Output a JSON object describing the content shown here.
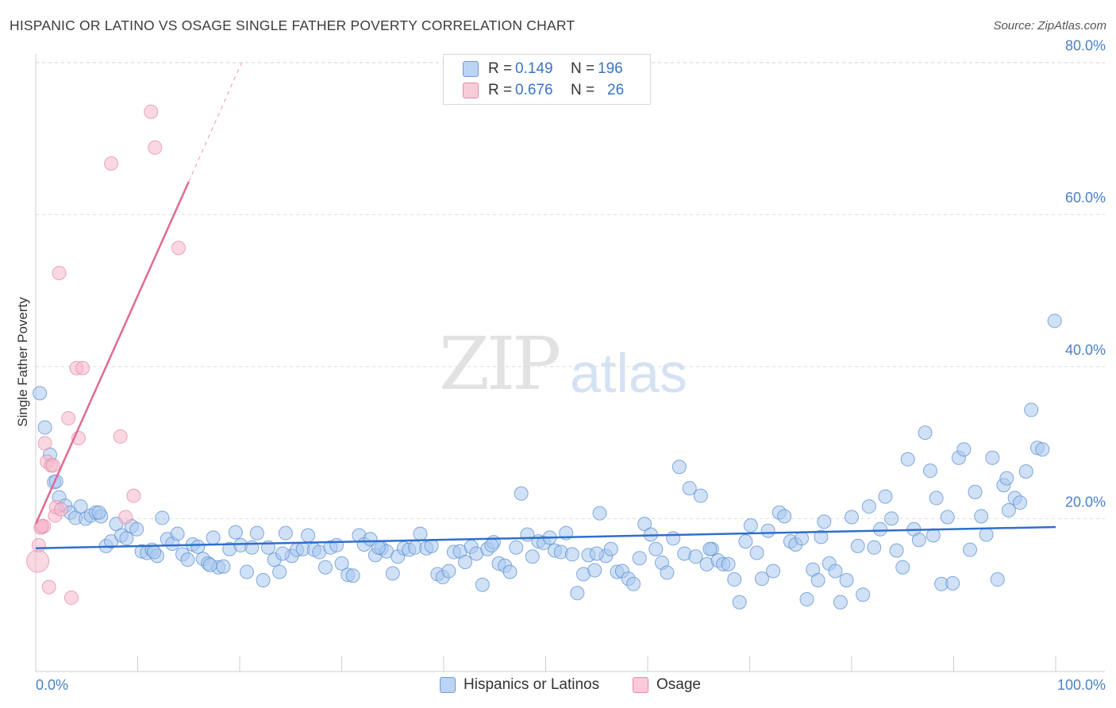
{
  "title": "HISPANIC OR LATINO VS OSAGE SINGLE FATHER POVERTY CORRELATION CHART",
  "source": "Source: ZipAtlas.com",
  "watermark": {
    "zip": "ZIP",
    "atlas": "atlas"
  },
  "legend": {
    "rows": [
      {
        "r_label": "R =",
        "r_value": "0.149",
        "n_label": "N =",
        "n_value": "196",
        "color": "#a9c8ee"
      },
      {
        "r_label": "R =",
        "r_value": "0.676",
        "n_label": "N =",
        "n_value": "26",
        "color": "#f6b8cb"
      }
    ]
  },
  "bottom_legend": [
    {
      "label": "Hispanics or Latinos",
      "color": "#a9c8ee"
    },
    {
      "label": "Osage",
      "color": "#f6b8cb"
    }
  ],
  "chart_data": {
    "type": "scatter",
    "title": "HISPANIC OR LATINO VS OSAGE SINGLE FATHER POVERTY CORRELATION CHART",
    "xlabel": "",
    "ylabel": "Single Father Poverty",
    "xlim": [
      0,
      100
    ],
    "ylim": [
      0,
      80
    ],
    "x_tick_labels": [
      "0.0%",
      "100.0%"
    ],
    "y_ticks": [
      20,
      40,
      60,
      80
    ],
    "y_tick_labels": [
      "20.0%",
      "40.0%",
      "60.0%",
      "80.0%"
    ],
    "grid": "horizontal dashed",
    "colors": {
      "blue_fill": "#a9c8ee",
      "blue_stroke": "#5b8fd1",
      "blue_line": "#2e6fce",
      "pink_fill": "#f6b8cb",
      "pink_stroke": "#e58aa8",
      "pink_line": "#e06a95"
    },
    "series": [
      {
        "name": "Hispanics or Latinos",
        "trend": {
          "x0": 0,
          "y0": 16.1,
          "x1": 100,
          "y1": 18.9
        },
        "points": [
          [
            0.4,
            36.5
          ],
          [
            0.9,
            32.0
          ],
          [
            1.4,
            28.4
          ],
          [
            1.8,
            24.8
          ],
          [
            2.3,
            22.8
          ],
          [
            2.9,
            21.7
          ],
          [
            3.4,
            20.8
          ],
          [
            3.9,
            20.1
          ],
          [
            4.4,
            21.6
          ],
          [
            4.9,
            20.0
          ],
          [
            5.4,
            20.4
          ],
          [
            5.9,
            20.8
          ],
          [
            6.4,
            20.3
          ],
          [
            6.9,
            16.4
          ],
          [
            7.4,
            17.0
          ],
          [
            7.9,
            19.3
          ],
          [
            8.4,
            17.8
          ],
          [
            8.9,
            17.4
          ],
          [
            9.4,
            19.0
          ],
          [
            9.9,
            18.6
          ],
          [
            10.4,
            15.7
          ],
          [
            10.9,
            15.5
          ],
          [
            11.4,
            15.9
          ],
          [
            11.9,
            15.1
          ],
          [
            12.4,
            20.1
          ],
          [
            12.9,
            17.3
          ],
          [
            13.4,
            16.7
          ],
          [
            13.9,
            18.0
          ],
          [
            14.4,
            15.3
          ],
          [
            14.9,
            14.6
          ],
          [
            15.4,
            16.6
          ],
          [
            15.9,
            16.3
          ],
          [
            16.4,
            14.7
          ],
          [
            16.9,
            14.1
          ],
          [
            17.4,
            17.5
          ],
          [
            17.9,
            13.6
          ],
          [
            18.4,
            13.7
          ],
          [
            19.0,
            16.0
          ],
          [
            19.6,
            18.2
          ],
          [
            20.1,
            16.5
          ],
          [
            20.7,
            13.0
          ],
          [
            21.2,
            16.2
          ],
          [
            21.7,
            18.1
          ],
          [
            22.3,
            11.9
          ],
          [
            22.8,
            16.2
          ],
          [
            23.4,
            14.6
          ],
          [
            23.9,
            13.0
          ],
          [
            24.5,
            18.1
          ],
          [
            25.1,
            15.1
          ],
          [
            25.6,
            15.9
          ],
          [
            26.2,
            16.0
          ],
          [
            26.7,
            17.8
          ],
          [
            27.3,
            15.9
          ],
          [
            27.8,
            15.6
          ],
          [
            28.4,
            13.6
          ],
          [
            28.9,
            16.2
          ],
          [
            29.5,
            16.5
          ],
          [
            30.0,
            14.1
          ],
          [
            30.6,
            12.6
          ],
          [
            31.1,
            12.5
          ],
          [
            31.7,
            17.8
          ],
          [
            32.2,
            16.6
          ],
          [
            32.8,
            17.3
          ],
          [
            33.3,
            15.2
          ],
          [
            33.9,
            16.1
          ],
          [
            34.4,
            15.7
          ],
          [
            35.0,
            12.8
          ],
          [
            35.5,
            15.0
          ],
          [
            36.1,
            16.1
          ],
          [
            36.6,
            15.9
          ],
          [
            37.2,
            16.2
          ],
          [
            37.7,
            18.0
          ],
          [
            38.3,
            16.1
          ],
          [
            38.8,
            16.4
          ],
          [
            39.4,
            12.7
          ],
          [
            39.9,
            12.3
          ],
          [
            40.5,
            13.1
          ],
          [
            41.0,
            15.6
          ],
          [
            41.6,
            15.7
          ],
          [
            42.1,
            14.3
          ],
          [
            42.7,
            16.3
          ],
          [
            43.2,
            15.4
          ],
          [
            43.8,
            11.3
          ],
          [
            44.3,
            16.0
          ],
          [
            44.9,
            16.9
          ],
          [
            45.4,
            14.1
          ],
          [
            46.0,
            13.8
          ],
          [
            46.5,
            13.0
          ],
          [
            47.1,
            16.2
          ],
          [
            47.6,
            23.3
          ],
          [
            48.2,
            17.9
          ],
          [
            48.7,
            15.0
          ],
          [
            49.3,
            17.0
          ],
          [
            49.8,
            16.8
          ],
          [
            50.4,
            17.5
          ],
          [
            50.9,
            15.8
          ],
          [
            51.5,
            15.6
          ],
          [
            52.0,
            18.1
          ],
          [
            52.6,
            15.3
          ],
          [
            53.1,
            10.2
          ],
          [
            53.7,
            12.7
          ],
          [
            54.2,
            15.2
          ],
          [
            54.8,
            13.2
          ],
          [
            55.3,
            20.7
          ],
          [
            55.9,
            15.1
          ],
          [
            56.4,
            16.0
          ],
          [
            57.0,
            13.0
          ],
          [
            57.5,
            13.1
          ],
          [
            58.1,
            12.1
          ],
          [
            58.6,
            11.4
          ],
          [
            59.2,
            14.8
          ],
          [
            59.7,
            19.3
          ],
          [
            60.3,
            17.9
          ],
          [
            60.8,
            16.0
          ],
          [
            61.4,
            14.2
          ],
          [
            61.9,
            12.9
          ],
          [
            62.5,
            17.4
          ],
          [
            63.1,
            26.8
          ],
          [
            63.6,
            15.4
          ],
          [
            64.1,
            24.0
          ],
          [
            64.7,
            15.0
          ],
          [
            65.2,
            23.0
          ],
          [
            65.8,
            14.0
          ],
          [
            66.3,
            16.0
          ],
          [
            66.9,
            14.5
          ],
          [
            67.4,
            14.0
          ],
          [
            67.9,
            14.0
          ],
          [
            68.5,
            12.0
          ],
          [
            69.0,
            9.0
          ],
          [
            69.6,
            17.0
          ],
          [
            70.1,
            19.1
          ],
          [
            70.7,
            15.5
          ],
          [
            71.2,
            12.1
          ],
          [
            71.8,
            18.4
          ],
          [
            72.3,
            13.1
          ],
          [
            72.9,
            20.8
          ],
          [
            73.4,
            20.3
          ],
          [
            74.0,
            17.0
          ],
          [
            74.5,
            16.6
          ],
          [
            75.1,
            17.4
          ],
          [
            75.6,
            9.4
          ],
          [
            76.2,
            13.3
          ],
          [
            76.7,
            11.9
          ],
          [
            77.3,
            19.6
          ],
          [
            77.8,
            14.1
          ],
          [
            78.4,
            13.1
          ],
          [
            78.9,
            9.0
          ],
          [
            79.5,
            11.9
          ],
          [
            80.0,
            20.2
          ],
          [
            80.6,
            16.4
          ],
          [
            81.1,
            10.0
          ],
          [
            81.7,
            21.6
          ],
          [
            82.2,
            16.2
          ],
          [
            82.8,
            18.6
          ],
          [
            83.3,
            22.9
          ],
          [
            83.9,
            20.0
          ],
          [
            84.4,
            15.8
          ],
          [
            85.0,
            13.6
          ],
          [
            85.5,
            27.8
          ],
          [
            86.1,
            18.6
          ],
          [
            86.6,
            17.2
          ],
          [
            87.2,
            31.3
          ],
          [
            87.7,
            26.3
          ],
          [
            88.3,
            22.7
          ],
          [
            88.8,
            11.4
          ],
          [
            89.4,
            20.2
          ],
          [
            89.9,
            11.5
          ],
          [
            90.5,
            28.0
          ],
          [
            91.0,
            29.1
          ],
          [
            91.6,
            15.9
          ],
          [
            92.1,
            23.5
          ],
          [
            92.7,
            20.3
          ],
          [
            93.2,
            17.9
          ],
          [
            93.8,
            28.0
          ],
          [
            94.3,
            12.0
          ],
          [
            94.9,
            24.4
          ],
          [
            95.4,
            21.1
          ],
          [
            96.0,
            22.7
          ],
          [
            96.5,
            22.1
          ],
          [
            97.1,
            26.2
          ],
          [
            97.6,
            34.3
          ],
          [
            98.2,
            29.3
          ],
          [
            98.7,
            29.1
          ],
          [
            2.0,
            24.9
          ],
          [
            6.2,
            20.8
          ],
          [
            11.6,
            15.6
          ],
          [
            17.1,
            13.9
          ],
          [
            24.2,
            15.4
          ],
          [
            33.6,
            16.2
          ],
          [
            44.7,
            16.5
          ],
          [
            55.0,
            15.4
          ],
          [
            66.1,
            16.0
          ],
          [
            77.0,
            17.6
          ],
          [
            88.0,
            17.8
          ],
          [
            95.2,
            25.3
          ],
          [
            99.9,
            46.0
          ]
        ]
      },
      {
        "name": "Osage",
        "trend": {
          "x0": 0,
          "y0": 19.3,
          "x1": 15.0,
          "y1": 64.3
        },
        "trend_extension": {
          "x0": 15.0,
          "y0": 64.3,
          "x1": 20.2,
          "y1": 80.0
        },
        "points": [
          [
            0.2,
            14.4
          ],
          [
            0.3,
            16.5
          ],
          [
            0.5,
            18.8
          ],
          [
            0.8,
            19.0
          ],
          [
            0.9,
            29.9
          ],
          [
            1.1,
            27.5
          ],
          [
            1.3,
            11.0
          ],
          [
            1.5,
            27.0
          ],
          [
            1.7,
            27.0
          ],
          [
            1.9,
            20.4
          ],
          [
            2.0,
            21.5
          ],
          [
            2.3,
            52.3
          ],
          [
            2.5,
            21.2
          ],
          [
            3.2,
            33.2
          ],
          [
            3.5,
            9.6
          ],
          [
            4.0,
            39.8
          ],
          [
            4.2,
            30.6
          ],
          [
            4.6,
            39.8
          ],
          [
            7.4,
            66.7
          ],
          [
            8.3,
            30.8
          ],
          [
            8.8,
            20.2
          ],
          [
            9.6,
            23.0
          ],
          [
            11.3,
            73.5
          ],
          [
            11.7,
            68.8
          ],
          [
            14.0,
            55.6
          ],
          [
            0.6,
            19.0
          ]
        ]
      }
    ]
  }
}
